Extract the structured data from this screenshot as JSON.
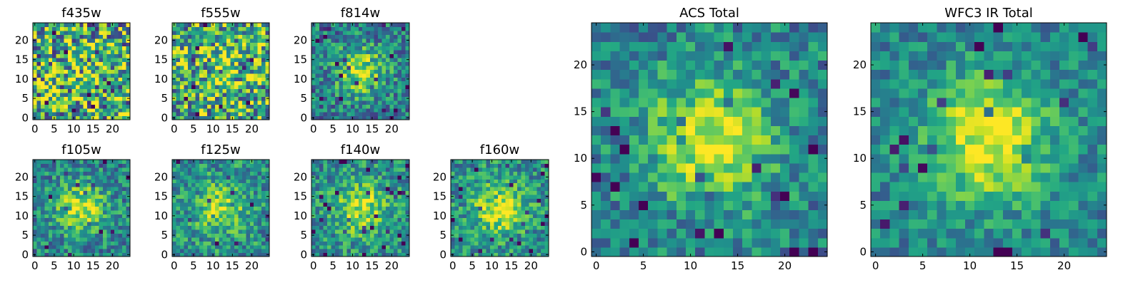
{
  "figure": {
    "colormap": "viridis",
    "background": "#ffffff",
    "axis_color": "#000000"
  },
  "chart_data": [
    {
      "type": "heatmap",
      "title": "f435w",
      "xticks": [
        0,
        5,
        10,
        15,
        20
      ],
      "yticks": [
        0,
        5,
        10,
        15,
        20
      ],
      "xlim": [
        0,
        25
      ],
      "ylim": [
        0,
        25
      ],
      "grid_size": 25,
      "peak": [
        12,
        12
      ],
      "peak_strength": 0.05,
      "noise": 1.0,
      "base": 0.62,
      "seed": 11
    },
    {
      "type": "heatmap",
      "title": "f555w",
      "xticks": [
        0,
        5,
        10,
        15,
        20
      ],
      "yticks": [
        0,
        5,
        10,
        15,
        20
      ],
      "xlim": [
        0,
        25
      ],
      "ylim": [
        0,
        25
      ],
      "grid_size": 25,
      "peak": [
        12,
        12
      ],
      "peak_strength": 0.12,
      "noise": 0.9,
      "base": 0.62,
      "seed": 23
    },
    {
      "type": "heatmap",
      "title": "f814w",
      "xticks": [
        0,
        5,
        10,
        15,
        20
      ],
      "yticks": [
        0,
        5,
        10,
        15,
        20
      ],
      "xlim": [
        0,
        25
      ],
      "ylim": [
        0,
        25
      ],
      "grid_size": 25,
      "peak": [
        12,
        12
      ],
      "peak_strength": 0.45,
      "noise": 0.55,
      "base": 0.42,
      "seed": 37
    },
    {
      "type": "heatmap",
      "title": "f105w",
      "xticks": [
        0,
        5,
        10,
        15,
        20
      ],
      "yticks": [
        0,
        5,
        10,
        15,
        20
      ],
      "xlim": [
        0,
        25
      ],
      "ylim": [
        0,
        25
      ],
      "grid_size": 25,
      "peak": [
        12,
        12
      ],
      "peak_strength": 0.45,
      "noise": 0.5,
      "base": 0.45,
      "seed": 41
    },
    {
      "type": "heatmap",
      "title": "f125w",
      "xticks": [
        0,
        5,
        10,
        15,
        20
      ],
      "yticks": [
        0,
        5,
        10,
        15,
        20
      ],
      "xlim": [
        0,
        25
      ],
      "ylim": [
        0,
        25
      ],
      "grid_size": 25,
      "peak": [
        12,
        12
      ],
      "peak_strength": 0.35,
      "noise": 0.5,
      "base": 0.5,
      "seed": 53
    },
    {
      "type": "heatmap",
      "title": "f140w",
      "xticks": [
        0,
        5,
        10,
        15,
        20
      ],
      "yticks": [
        0,
        5,
        10,
        15,
        20
      ],
      "xlim": [
        0,
        25
      ],
      "ylim": [
        0,
        25
      ],
      "grid_size": 25,
      "peak": [
        12,
        12
      ],
      "peak_strength": 0.4,
      "noise": 0.5,
      "base": 0.5,
      "seed": 67
    },
    {
      "type": "heatmap",
      "title": "f160w",
      "xticks": [
        0,
        5,
        10,
        15,
        20
      ],
      "yticks": [
        0,
        5,
        10,
        15,
        20
      ],
      "xlim": [
        0,
        25
      ],
      "ylim": [
        0,
        25
      ],
      "grid_size": 25,
      "peak": [
        12,
        12
      ],
      "peak_strength": 0.45,
      "noise": 0.5,
      "base": 0.5,
      "seed": 71
    },
    {
      "type": "heatmap",
      "title": "ACS Total",
      "xticks": [
        0,
        5,
        10,
        15,
        20
      ],
      "yticks": [
        0,
        5,
        10,
        15,
        20
      ],
      "xlim": [
        0,
        25
      ],
      "ylim": [
        0,
        25
      ],
      "grid_size": 25,
      "peak": [
        12,
        12
      ],
      "peak_strength": 0.5,
      "noise": 0.45,
      "base": 0.45,
      "seed": 83
    },
    {
      "type": "heatmap",
      "title": "WFC3 IR Total",
      "xticks": [
        0,
        5,
        10,
        15,
        20
      ],
      "yticks": [
        0,
        5,
        10,
        15,
        20
      ],
      "xlim": [
        0,
        25
      ],
      "ylim": [
        0,
        25
      ],
      "grid_size": 25,
      "peak": [
        12,
        12
      ],
      "peak_strength": 0.55,
      "noise": 0.38,
      "base": 0.45,
      "seed": 97
    }
  ]
}
